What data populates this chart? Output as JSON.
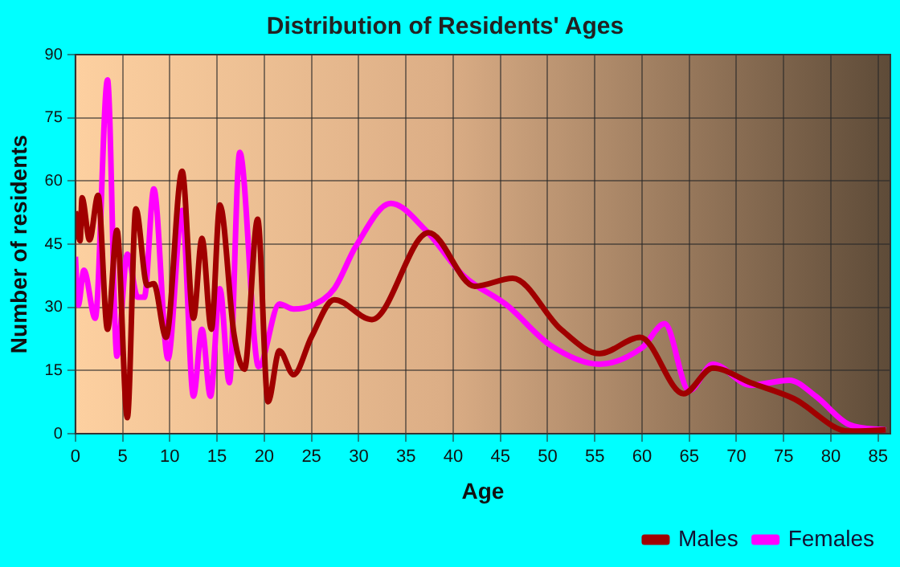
{
  "chart_data": {
    "type": "line",
    "title": "Distribution of Residents' Ages",
    "xlabel": "Age",
    "ylabel": "Number of residents",
    "xlim": [
      0,
      86.3
    ],
    "xticks": [
      0,
      5,
      10,
      15,
      20,
      25,
      30,
      35,
      40,
      45,
      50,
      55,
      60,
      65,
      70,
      75,
      80,
      85
    ],
    "ylim": [
      0,
      90
    ],
    "yticks": [
      0,
      15,
      30,
      45,
      60,
      75,
      90
    ],
    "grid": true,
    "legend": "bottom right",
    "marker": "none",
    "line_style": "solid",
    "series": [
      {
        "name": "Males",
        "color": "#a00000",
        "x": [
          0,
          0.5,
          0.7,
          1.5,
          2.4,
          3.4,
          4.4,
          5.5,
          6.4,
          7.6,
          8.3,
          9.6,
          11.3,
          12.5,
          13.4,
          14.4,
          15.3,
          16.8,
          17.9,
          19.3,
          20.4,
          21.6,
          23.1,
          25,
          27.4,
          31.4,
          37.4,
          42.3,
          46.3,
          51.4,
          55.5,
          59.8,
          64.4,
          67.5,
          71.5,
          76.1,
          81.9,
          85.8
        ],
        "values": [
          52.8,
          45.8,
          56,
          46,
          56.6,
          24.8,
          48.3,
          3.8,
          53.4,
          35.2,
          35.6,
          22.9,
          62.3,
          27.4,
          46.4,
          24.8,
          54.3,
          23.5,
          15.3,
          50.9,
          7.6,
          19.7,
          14,
          23,
          31.8,
          27.1,
          47.7,
          35,
          36.9,
          24.8,
          19,
          22.9,
          9.5,
          15.6,
          12.1,
          8.3,
          0.6,
          0.9
        ]
      },
      {
        "name": "Females",
        "color": "#ff00ff",
        "x": [
          0,
          0.3,
          0.9,
          2.1,
          3.4,
          4.4,
          5.5,
          6.6,
          7.3,
          8.3,
          9.8,
          11.3,
          12.5,
          13.4,
          14.3,
          15.3,
          16.3,
          17.4,
          19.4,
          21.6,
          23.1,
          25.1,
          27.4,
          29.7,
          33.4,
          37.1,
          41.1,
          45.7,
          50.3,
          55.5,
          60,
          62.4,
          65,
          67.5,
          71.5,
          75.6,
          78.4,
          81.9,
          85.8
        ],
        "values": [
          42,
          30.5,
          38.8,
          27.4,
          84,
          18.4,
          42.6,
          32.4,
          32.4,
          58.1,
          17.8,
          53,
          8.9,
          24.8,
          8.9,
          34.4,
          12.1,
          66.8,
          15.9,
          30.8,
          29.6,
          30.5,
          34.4,
          44.5,
          54.7,
          48.3,
          37.5,
          30.5,
          21,
          16.5,
          20.4,
          26.1,
          10.2,
          16.5,
          11.5,
          12.7,
          8.9,
          2.2,
          0.9
        ]
      }
    ]
  }
}
